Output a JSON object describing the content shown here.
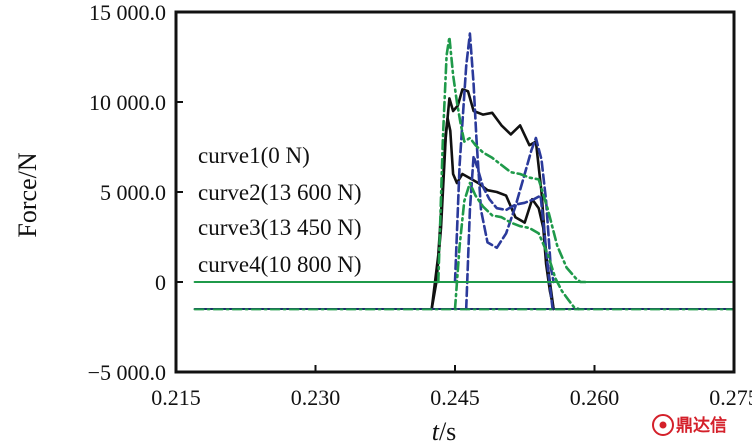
{
  "chart_data": {
    "type": "line",
    "xlabel_italic": "t",
    "xlabel_unit": "/s",
    "ylabel": "Force/N",
    "xlim": [
      0.215,
      0.275
    ],
    "ylim": [
      -5000,
      15000
    ],
    "x_ticks": [
      0.215,
      0.23,
      0.245,
      0.26,
      0.275
    ],
    "x_tick_labels": [
      "0.215",
      "0.230",
      "0.245",
      "0.260",
      "0.275"
    ],
    "y_ticks": [
      -5000,
      0,
      5000,
      10000,
      15000
    ],
    "y_tick_labels": [
      "−5 000.0",
      "0",
      "5 000.0",
      "10 000.0",
      "15 000.0"
    ],
    "legend": [
      "curve1(0 N)",
      "curve2(13 600 N)",
      "curve3(13 450 N)",
      "curve4(10 800 N)"
    ],
    "legend_position": "left",
    "colors": {
      "black": "#111111",
      "blue": "#2b3a9b",
      "green": "#1f9a4a",
      "navy": "#1e2a6e"
    },
    "series": [
      {
        "color": "black",
        "dash": "solid",
        "x": [
          0.2425,
          0.2432,
          0.2437,
          0.244,
          0.2442,
          0.2445,
          0.2448,
          0.2452,
          0.2458,
          0.2465,
          0.2475,
          0.2485,
          0.2495,
          0.2505,
          0.2515,
          0.2525,
          0.2533,
          0.254,
          0.2545,
          0.2548,
          0.2552,
          0.2556
        ],
        "y": [
          -1500,
          1500,
          5500,
          8200,
          9100,
          8400,
          6000,
          5500,
          6000,
          5800,
          5500,
          5100,
          5000,
          4800,
          3600,
          3300,
          4600,
          4100,
          3000,
          1000,
          -500,
          -1500
        ]
      },
      {
        "color": "black",
        "dash": "solid",
        "x": [
          0.2425,
          0.243,
          0.2435,
          0.244,
          0.2444,
          0.2448,
          0.2453,
          0.2458,
          0.2464,
          0.247,
          0.248,
          0.249,
          0.25,
          0.251,
          0.252,
          0.253,
          0.2537,
          0.2543,
          0.2548,
          0.2552,
          0.2556
        ],
        "y": [
          -1500,
          0,
          3000,
          8000,
          10200,
          9500,
          9800,
          10700,
          10600,
          9500,
          9300,
          9400,
          8700,
          8200,
          8700,
          7600,
          7800,
          5000,
          1500,
          0,
          -1500
        ]
      },
      {
        "color": "blue",
        "dash": "dashed",
        "x": [
          0.245,
          0.2455,
          0.2462,
          0.2466,
          0.247,
          0.2473,
          0.2478,
          0.2485,
          0.2495,
          0.2505,
          0.2515,
          0.2525,
          0.2532,
          0.2537,
          0.2543,
          0.2548,
          0.2553,
          0.2556
        ],
        "y": [
          0,
          6500,
          12000,
          13800,
          11000,
          8000,
          4000,
          2200,
          1900,
          2700,
          4200,
          6000,
          7300,
          8000,
          6800,
          4500,
          800,
          0
        ]
      },
      {
        "color": "blue",
        "dash": "dashed",
        "x": [
          0.2462,
          0.2466,
          0.247,
          0.2475,
          0.248,
          0.2487,
          0.2495,
          0.2505,
          0.2515,
          0.2525,
          0.2535,
          0.2542,
          0.2546,
          0.255,
          0.2555
        ],
        "y": [
          -1500,
          4000,
          7000,
          6200,
          5300,
          4600,
          4100,
          4000,
          4300,
          4400,
          4600,
          4800,
          2800,
          700,
          -1500
        ]
      },
      {
        "color": "green",
        "dash": "dashdot",
        "x": [
          0.2432,
          0.2437,
          0.2441,
          0.2444,
          0.2448,
          0.2452,
          0.2456,
          0.246,
          0.2466,
          0.2472,
          0.248,
          0.249,
          0.25,
          0.251,
          0.252,
          0.253,
          0.254,
          0.255,
          0.256,
          0.257,
          0.258,
          0.2585,
          0.259
        ],
        "y": [
          0,
          8000,
          12600,
          13600,
          11500,
          10000,
          8800,
          7800,
          8000,
          7600,
          7200,
          6900,
          6500,
          6100,
          6000,
          5800,
          5700,
          4000,
          2000,
          800,
          200,
          0,
          0
        ]
      },
      {
        "color": "green",
        "dash": "dashdot",
        "x": [
          0.245,
          0.2455,
          0.246,
          0.2466,
          0.2472,
          0.248,
          0.249,
          0.25,
          0.251,
          0.252,
          0.253,
          0.254,
          0.255,
          0.2558,
          0.2565,
          0.2572,
          0.2578,
          0.2583
        ],
        "y": [
          -1500,
          2000,
          4500,
          5500,
          4800,
          4200,
          3700,
          3600,
          3300,
          3100,
          3000,
          2700,
          1500,
          200,
          -500,
          -1000,
          -1400,
          -1500
        ]
      },
      {
        "color": "green",
        "dash": "solid",
        "x": [
          0.217,
          0.275
        ],
        "y": [
          0,
          0
        ]
      },
      {
        "color": "navy",
        "dash": "solid",
        "x": [
          0.217,
          0.275
        ],
        "y": [
          -1500,
          -1500
        ]
      },
      {
        "color": "green",
        "dash": "dashdot",
        "x": [
          0.217,
          0.275
        ],
        "y": [
          -1520,
          -1520
        ]
      }
    ]
  },
  "watermark": {
    "text": "鼎达信"
  }
}
